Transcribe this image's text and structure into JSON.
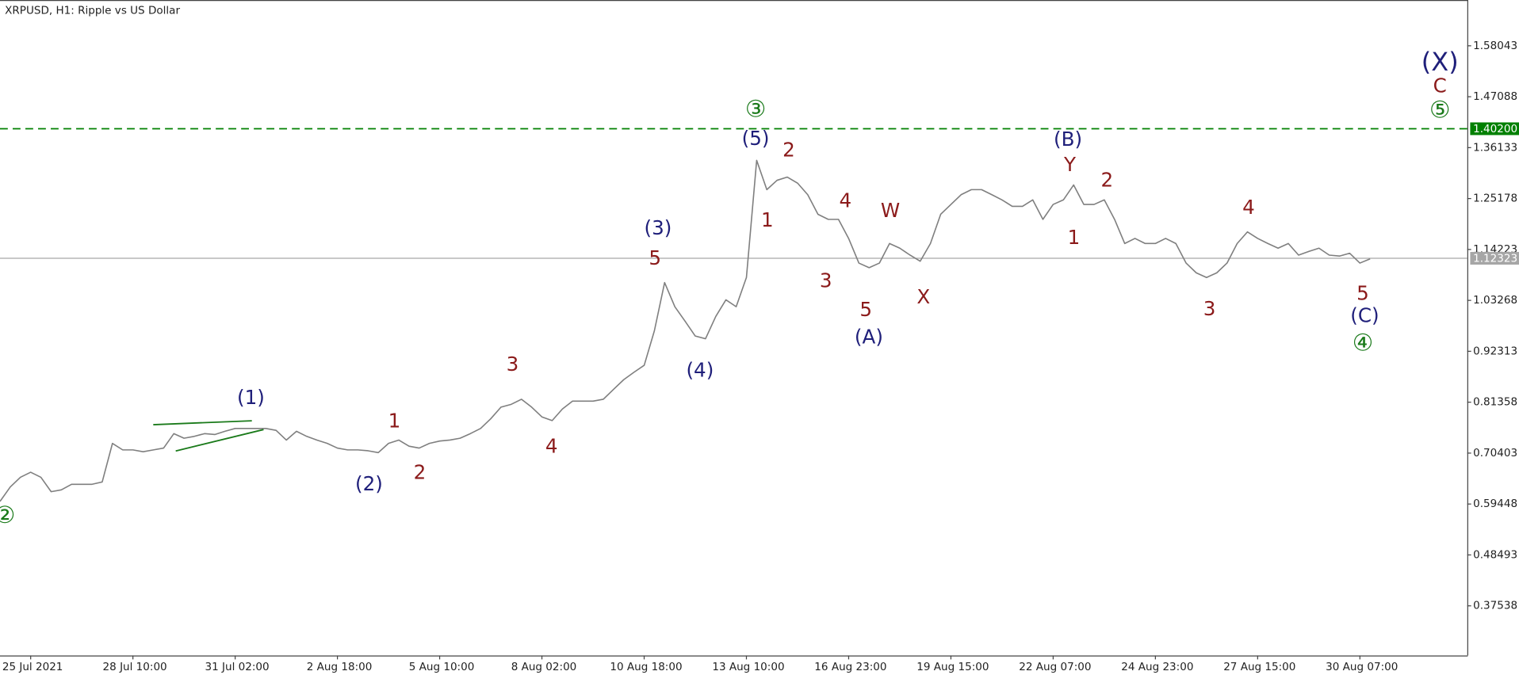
{
  "chart_data": {
    "type": "line",
    "title": "XRPUSD, H1:  Ripple vs US Dollar",
    "categories": [
      null,
      null,
      null,
      "25 Jul 2021",
      null,
      null,
      null,
      null,
      null,
      null,
      null,
      null,
      null,
      "28 Jul 10:00",
      null,
      null,
      null,
      null,
      null,
      null,
      null,
      null,
      null,
      "31 Jul 02:00",
      null,
      null,
      null,
      null,
      null,
      null,
      null,
      null,
      null,
      "2 Aug 18:00",
      null,
      null,
      null,
      null,
      null,
      null,
      null,
      null,
      null,
      "5 Aug 10:00",
      null,
      null,
      null,
      null,
      null,
      null,
      null,
      null,
      null,
      "8 Aug 02:00",
      null,
      null,
      null,
      null,
      null,
      null,
      null,
      null,
      null,
      "10 Aug 18:00",
      null,
      null,
      null,
      null,
      null,
      null,
      null,
      null,
      null,
      "13 Aug 10:00",
      null,
      null,
      null,
      null,
      null,
      null,
      null,
      null,
      null,
      "16 Aug 23:00",
      null,
      null,
      null,
      null,
      null,
      null,
      null,
      null,
      null,
      "19 Aug 15:00",
      null,
      null,
      null,
      null,
      null,
      null,
      null,
      null,
      null,
      "22 Aug 07:00",
      null,
      null,
      null,
      null,
      null,
      null,
      null,
      null,
      null,
      "24 Aug 23:00",
      null,
      null,
      null,
      null,
      null,
      null,
      null,
      null,
      null,
      "27 Aug 15:00",
      null,
      null,
      null,
      null,
      null,
      null,
      null,
      null,
      null,
      "30 Aug 07:00",
      null,
      null,
      null,
      null,
      null,
      null,
      null,
      null,
      null,
      null
    ],
    "series": [
      {
        "color": "#7f7f7f",
        "values": [
          0.6,
          0.631,
          0.652,
          0.663,
          0.652,
          0.621,
          0.625,
          0.637,
          0.637,
          0.637,
          0.642,
          0.725,
          0.711,
          0.711,
          0.707,
          0.711,
          0.715,
          0.746,
          0.736,
          0.74,
          0.746,
          0.744,
          0.751,
          0.757,
          0.757,
          0.757,
          0.757,
          0.753,
          0.732,
          0.751,
          0.74,
          0.732,
          0.725,
          0.715,
          0.711,
          0.711,
          0.709,
          0.705,
          0.725,
          0.732,
          0.719,
          0.715,
          0.725,
          0.73,
          0.732,
          0.736,
          0.746,
          0.757,
          0.778,
          0.803,
          0.809,
          0.82,
          0.803,
          0.782,
          0.774,
          0.799,
          0.816,
          0.816,
          0.816,
          0.82,
          0.841,
          0.862,
          0.878,
          0.893,
          0.967,
          1.071,
          1.019,
          0.988,
          0.956,
          0.95,
          0.998,
          1.034,
          1.019,
          1.082,
          1.334,
          1.271,
          1.291,
          1.298,
          1.285,
          1.26,
          1.218,
          1.207,
          1.207,
          1.166,
          1.113,
          1.103,
          1.113,
          1.155,
          1.145,
          1.13,
          1.117,
          1.155,
          1.218,
          1.239,
          1.26,
          1.271,
          1.271,
          1.26,
          1.249,
          1.235,
          1.235,
          1.249,
          1.207,
          1.239,
          1.249,
          1.281,
          1.239,
          1.239,
          1.249,
          1.207,
          1.155,
          1.166,
          1.155,
          1.155,
          1.166,
          1.155,
          1.113,
          1.092,
          1.082,
          1.092,
          1.113,
          1.155,
          1.18,
          1.166,
          1.155,
          1.145,
          1.155,
          1.13,
          1.138,
          1.145,
          1.13,
          1.128,
          1.134,
          1.113,
          1.122,
          null,
          null,
          null,
          null,
          null,
          null,
          null,
          null,
          null
        ]
      },
      {
        "color": "#b3b3b3",
        "values": [
          null,
          null,
          null,
          null,
          null,
          null,
          null,
          null,
          null,
          null,
          null,
          null,
          null,
          null,
          null,
          null,
          null,
          null,
          null,
          null,
          null,
          null,
          null,
          null,
          null,
          null,
          null,
          null,
          null,
          null,
          null,
          null,
          null,
          null,
          null,
          null,
          null,
          null,
          null,
          null,
          null,
          null,
          null,
          null,
          null,
          null,
          null,
          null,
          null,
          null,
          null,
          null,
          null,
          null,
          null,
          null,
          null,
          null,
          null,
          null,
          null,
          null,
          null,
          null,
          null,
          null,
          null,
          null,
          null,
          null,
          null,
          null,
          null,
          null,
          null,
          null,
          null,
          null,
          null,
          null,
          null,
          null,
          null,
          null,
          null,
          null,
          null,
          null,
          null,
          null,
          null,
          null,
          null,
          null,
          null,
          null,
          null,
          null,
          null,
          null,
          null,
          null,
          null,
          null,
          null,
          null,
          null,
          null,
          null,
          null,
          null,
          null,
          null,
          null,
          null,
          null,
          null,
          null,
          null,
          null,
          null,
          null,
          null,
          null,
          null,
          null,
          null,
          null,
          null,
          null,
          null,
          null,
          null,
          null,
          1.122,
          null,
          null,
          null,
          null,
          null,
          1.402,
          null,
          null,
          null
        ]
      }
    ],
    "ylim": [
      0.2685,
      1.679
    ],
    "yticks": [
      1.58043,
      1.47088,
      1.36133,
      1.25178,
      1.14223,
      1.03268,
      0.92313,
      0.81358,
      0.70403,
      0.59448,
      0.48493,
      0.37538
    ],
    "hlines": [
      {
        "value": 1.402,
        "label": "1.40200",
        "color": "#008000"
      },
      {
        "value": 1.12323,
        "label": "1.12323",
        "color": "#a6a6a6"
      }
    ],
    "annotations": [
      {
        "text": "②",
        "color": "#1a7a1a"
      },
      {
        "text": "(1)",
        "color": "#1f1f7a"
      },
      {
        "text": "(2)",
        "color": "#1f1f7a"
      },
      {
        "text": "1",
        "color": "#8b1a1a"
      },
      {
        "text": "2",
        "color": "#8b1a1a"
      },
      {
        "text": "3",
        "color": "#8b1a1a"
      },
      {
        "text": "4",
        "color": "#8b1a1a"
      },
      {
        "text": "(3)",
        "color": "#1f1f7a"
      },
      {
        "text": "5",
        "color": "#8b1a1a"
      },
      {
        "text": "(4)",
        "color": "#1f1f7a"
      },
      {
        "text": "③",
        "color": "#1a7a1a"
      },
      {
        "text": "(5)",
        "color": "#1f1f7a"
      },
      {
        "text": "2",
        "color": "#8b1a1a"
      },
      {
        "text": "1",
        "color": "#8b1a1a"
      },
      {
        "text": "4",
        "color": "#8b1a1a"
      },
      {
        "text": "3",
        "color": "#8b1a1a"
      },
      {
        "text": "W",
        "color": "#8b1a1a"
      },
      {
        "text": "5",
        "color": "#8b1a1a"
      },
      {
        "text": "(A)",
        "color": "#1f1f7a"
      },
      {
        "text": "X",
        "color": "#8b1a1a"
      },
      {
        "text": "(B)",
        "color": "#1f1f7a"
      },
      {
        "text": "Y",
        "color": "#8b1a1a"
      },
      {
        "text": "2",
        "color": "#8b1a1a"
      },
      {
        "text": "1",
        "color": "#8b1a1a"
      },
      {
        "text": "4",
        "color": "#8b1a1a"
      },
      {
        "text": "3",
        "color": "#8b1a1a"
      },
      {
        "text": "5",
        "color": "#8b1a1a"
      },
      {
        "text": "(C)",
        "color": "#1f1f7a"
      },
      {
        "text": "④",
        "color": "#1a7a1a"
      },
      {
        "text": "(X)",
        "color": "#1f1f7a"
      },
      {
        "text": "C",
        "color": "#8b1a1a"
      },
      {
        "text": "⑤",
        "color": "#1a7a1a"
      }
    ]
  }
}
